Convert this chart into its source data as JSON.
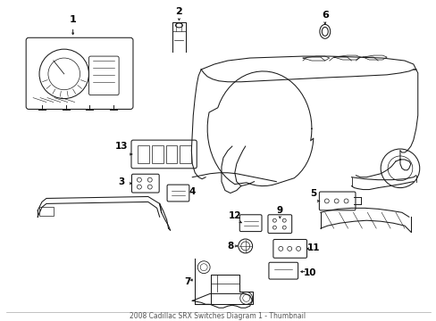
{
  "background_color": "#ffffff",
  "line_color": "#1a1a1a",
  "fig_width": 4.89,
  "fig_height": 3.6,
  "dpi": 100,
  "border_color": "#cccccc",
  "title_text": "2008 Cadillac SRX Switches Diagram 1 - Thumbnail",
  "label_fontsize": 7.5,
  "lw": 0.75
}
